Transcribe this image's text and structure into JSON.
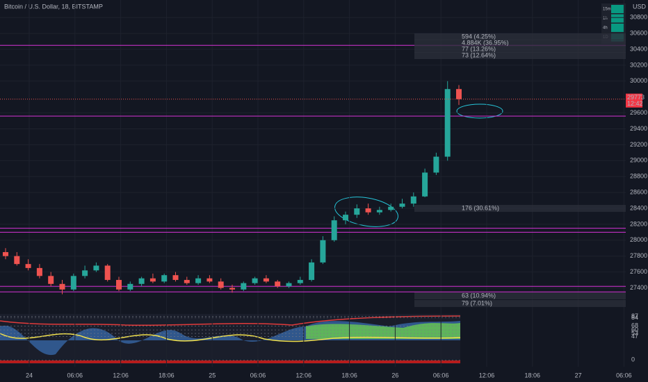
{
  "chart_data": {
    "type": "candlestick",
    "title": "Bitcoin / U.S. Dollar, 18, BITSTAMP",
    "currency": "USD",
    "up_color": "#26a69a",
    "down_color": "#ef5350",
    "open": [
      27850,
      27800,
      27700,
      27650,
      27550,
      27450,
      27380,
      27550,
      27620,
      27680,
      27500,
      27380,
      27450,
      27520,
      27480,
      27560,
      27500,
      27460,
      27520,
      27480,
      27400,
      27380,
      27460,
      27520,
      27480,
      27420,
      27460,
      27500,
      27720,
      28000,
      28250,
      28320,
      28400,
      28350,
      28380,
      28420,
      28460,
      28550,
      28850,
      29050,
      29900
    ],
    "high": [
      27900,
      27850,
      27760,
      27700,
      27600,
      27500,
      27580,
      27680,
      27720,
      27700,
      27540,
      27480,
      27540,
      27580,
      27580,
      27600,
      27540,
      27560,
      27560,
      27520,
      27440,
      27480,
      27540,
      27560,
      27500,
      27480,
      27540,
      27760,
      28050,
      28300,
      28360,
      28450,
      28460,
      28420,
      28460,
      28520,
      28600,
      28900,
      29100,
      30000,
      29950
    ],
    "low": [
      27760,
      27680,
      27620,
      27520,
      27420,
      27320,
      27360,
      27520,
      27600,
      27480,
      27360,
      27360,
      27420,
      27460,
      27460,
      27480,
      27440,
      27440,
      27460,
      27380,
      27340,
      27360,
      27440,
      27460,
      27400,
      27400,
      27440,
      27480,
      27700,
      27980,
      28200,
      28280,
      28320,
      28320,
      28360,
      28400,
      28420,
      28540,
      28820,
      29000,
      29700
    ],
    "close": [
      27800,
      27700,
      27650,
      27550,
      27450,
      27380,
      27550,
      27620,
      27680,
      27500,
      27380,
      27450,
      27520,
      27480,
      27560,
      27500,
      27460,
      27520,
      27480,
      27400,
      27380,
      27460,
      27520,
      27480,
      27420,
      27460,
      27500,
      27720,
      28000,
      28250,
      28320,
      28400,
      28350,
      28380,
      28420,
      28460,
      28550,
      28850,
      29050,
      29900,
      29773
    ],
    "ylim": [
      27090,
      31020
    ],
    "yticks": [
      27400,
      27600,
      27800,
      28000,
      28200,
      28400,
      28600,
      28800,
      29000,
      29200,
      29400,
      29600,
      30000,
      30200,
      30400,
      30600,
      30800
    ],
    "xtick_labels": [
      "24",
      "06:06",
      "12:06",
      "18:06",
      "25",
      "06:06",
      "12:06",
      "18:06",
      "26",
      "06:06",
      "12:06",
      "18:06",
      "27",
      "06:06"
    ],
    "last_price": 29773,
    "countdown": "12:42",
    "levels": [
      {
        "value": 30450,
        "color": "#d633d6"
      },
      {
        "value": 29560,
        "color": "#d633d6"
      },
      {
        "value": 28150,
        "color": "#d633d6"
      },
      {
        "value": 28100,
        "color": "#d633d6"
      },
      {
        "value": 27420,
        "color": "#d633d6"
      },
      {
        "value": 27350,
        "color": "#d633d6"
      }
    ],
    "annotations": [
      "594 (4.25%)",
      "4.884K (36.95%)",
      "77 (13.26%)",
      "73 (12.64%)",
      "176 (30.61%)",
      "63 (10.94%)",
      "79 (7.01%)"
    ],
    "timeframes": [
      "15m",
      "1h",
      "4h",
      "1D"
    ],
    "oscillator": {
      "ylim": [
        -8,
        92
      ],
      "yticks": [
        87,
        84,
        68,
        60,
        53,
        47,
        0
      ]
    }
  }
}
